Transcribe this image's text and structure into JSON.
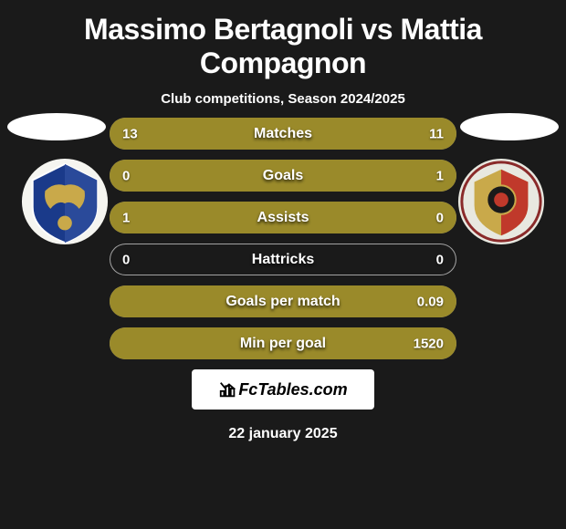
{
  "title": "Massimo Bertagnoli vs Mattia Compagnon",
  "subtitle": "Club competitions, Season 2024/2025",
  "watermark": "FcTables.com",
  "date": "22 january 2025",
  "left_color": "#9a8a2a",
  "right_color": "#9a8a2a",
  "neutral_color": "#9a8a2a",
  "background_color": "#1a1a1a",
  "bar_border_color": "rgba(255,255,255,0.6)",
  "text_color": "#ffffff",
  "title_fontsize": 32,
  "subtitle_fontsize": 15,
  "label_fontsize": 16,
  "value_fontsize": 15,
  "rows": [
    {
      "label": "Matches",
      "left": "13",
      "right": "11",
      "left_pct": 54,
      "right_pct": 46,
      "larger": "left"
    },
    {
      "label": "Goals",
      "left": "0",
      "right": "1",
      "left_pct": 0,
      "right_pct": 100,
      "larger": "right"
    },
    {
      "label": "Assists",
      "left": "1",
      "right": "0",
      "left_pct": 100,
      "right_pct": 0,
      "larger": "left"
    },
    {
      "label": "Hattricks",
      "left": "0",
      "right": "0",
      "left_pct": 0,
      "right_pct": 0,
      "larger": "none"
    },
    {
      "label": "Goals per match",
      "left": "",
      "right": "0.09",
      "left_pct": 0,
      "right_pct": 100,
      "larger": "right"
    },
    {
      "label": "Min per goal",
      "left": "",
      "right": "1520",
      "left_pct": 0,
      "right_pct": 100,
      "larger": "right"
    }
  ],
  "crest_left": {
    "outer": "#f5f5f0",
    "shape": "#1a3a8a",
    "accent": "#c9a94a"
  },
  "crest_right": {
    "outer": "#e8e8e0",
    "field_top": "#c9a94a",
    "field_bottom": "#c0392b",
    "circle": "#1a1a1a"
  }
}
